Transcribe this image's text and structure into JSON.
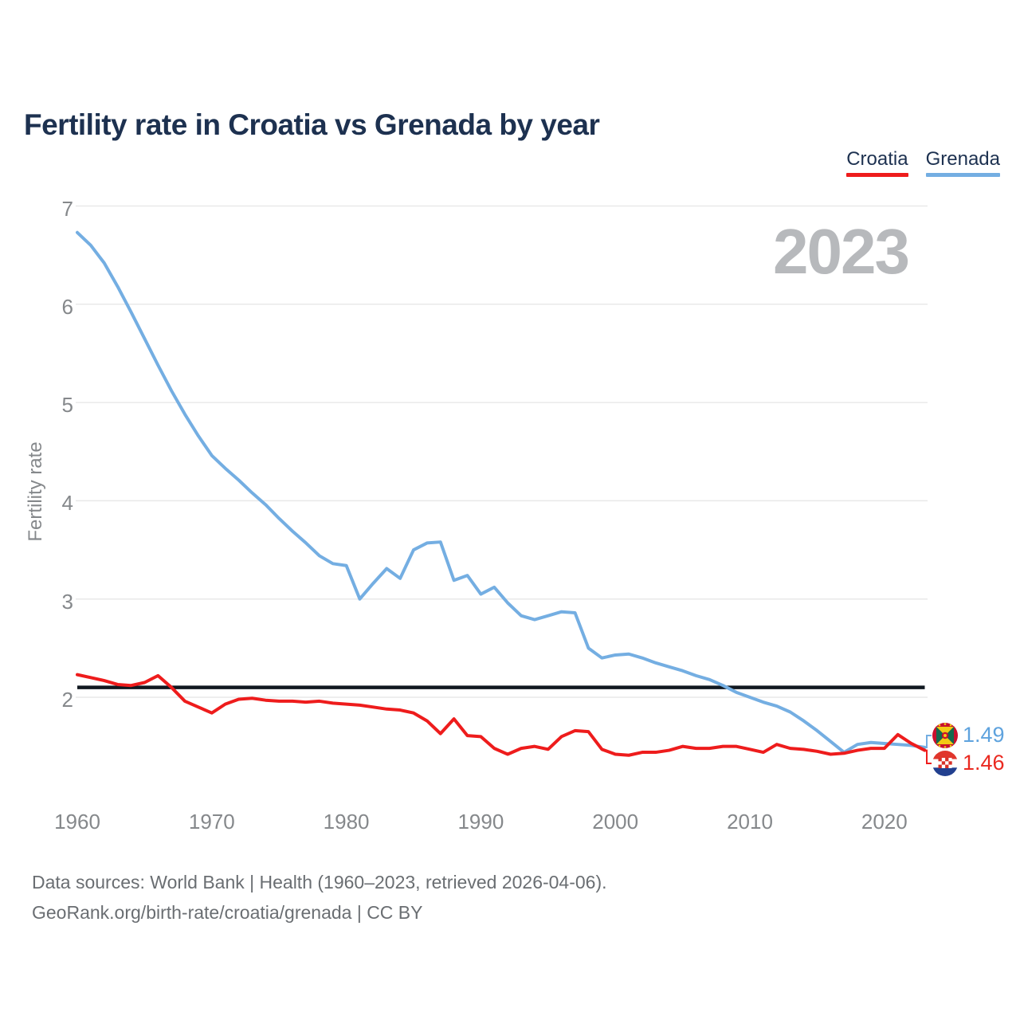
{
  "header": {
    "title": "Fertility rate in Croatia vs Grenada by year"
  },
  "legend": {
    "croatia": {
      "label": "Croatia",
      "color": "#ee1c1c"
    },
    "grenada": {
      "label": "Grenada",
      "color": "#74aee2"
    }
  },
  "watermark": "2023",
  "axes": {
    "y_label": "Fertility rate"
  },
  "end_labels": {
    "grenada": {
      "value": "1.49",
      "color": "#5fa3de"
    },
    "croatia": {
      "value": "1.46",
      "color": "#ea2a21"
    }
  },
  "footer": {
    "line1": "Data sources: World Bank | Health (1960–2023, retrieved 2026-04-06).",
    "line2": "GeoRank.org/birth-rate/croatia/grenada | CC BY"
  },
  "colors": {
    "title_text": "#1d3150",
    "axis_text": "#85888b",
    "footer_text": "#6a6e72",
    "gridline": "#e9e9e9",
    "watermark": "#b7b9bc",
    "reference_line": "#101820",
    "croatia_line": "#ee1c1c",
    "grenada_line": "#74aee2"
  },
  "chart_data": {
    "type": "line",
    "title": "Fertility rate in Croatia vs Grenada by year",
    "xlabel": "",
    "ylabel": "Fertility rate",
    "grid": "horizontal",
    "legend_position": "top-right",
    "ylim": [
      1.3,
      7.15
    ],
    "y_ticks": [
      7,
      6,
      5,
      4,
      3,
      2
    ],
    "x_ticks": [
      1960,
      1970,
      1980,
      1990,
      2000,
      2010,
      2020
    ],
    "reference_line": {
      "value": 2.1
    },
    "x": [
      1960,
      1961,
      1962,
      1963,
      1964,
      1965,
      1966,
      1967,
      1968,
      1969,
      1970,
      1971,
      1972,
      1973,
      1974,
      1975,
      1976,
      1977,
      1978,
      1979,
      1980,
      1981,
      1982,
      1983,
      1984,
      1985,
      1986,
      1987,
      1988,
      1989,
      1990,
      1991,
      1992,
      1993,
      1994,
      1995,
      1996,
      1997,
      1998,
      1999,
      2000,
      2001,
      2002,
      2003,
      2004,
      2005,
      2006,
      2007,
      2008,
      2009,
      2010,
      2011,
      2012,
      2013,
      2014,
      2015,
      2016,
      2017,
      2018,
      2019,
      2020,
      2021,
      2022,
      2023
    ],
    "series": [
      {
        "name": "Croatia",
        "color": "#ee1c1c",
        "final_value": 1.46,
        "values": [
          2.23,
          2.2,
          2.17,
          2.13,
          2.12,
          2.15,
          2.22,
          2.1,
          1.96,
          1.9,
          1.84,
          1.93,
          1.98,
          1.99,
          1.97,
          1.96,
          1.96,
          1.95,
          1.96,
          1.94,
          1.93,
          1.92,
          1.9,
          1.88,
          1.87,
          1.84,
          1.76,
          1.63,
          1.78,
          1.61,
          1.6,
          1.48,
          1.42,
          1.48,
          1.5,
          1.47,
          1.6,
          1.66,
          1.65,
          1.47,
          1.42,
          1.41,
          1.44,
          1.44,
          1.46,
          1.5,
          1.48,
          1.48,
          1.5,
          1.5,
          1.47,
          1.44,
          1.52,
          1.48,
          1.47,
          1.45,
          1.42,
          1.43,
          1.46,
          1.48,
          1.48,
          1.62,
          1.53,
          1.46
        ]
      },
      {
        "name": "Grenada",
        "color": "#74aee2",
        "final_value": 1.49,
        "values": [
          6.73,
          6.6,
          6.42,
          6.18,
          5.92,
          5.65,
          5.38,
          5.12,
          4.88,
          4.66,
          4.46,
          4.33,
          4.21,
          4.08,
          3.96,
          3.82,
          3.69,
          3.57,
          3.44,
          3.36,
          3.34,
          3.0,
          3.16,
          3.31,
          3.21,
          3.5,
          3.57,
          3.58,
          3.19,
          3.24,
          3.05,
          3.12,
          2.96,
          2.83,
          2.79,
          2.83,
          2.87,
          2.86,
          2.5,
          2.4,
          2.43,
          2.44,
          2.4,
          2.35,
          2.31,
          2.27,
          2.22,
          2.18,
          2.12,
          2.05,
          2.0,
          1.95,
          1.91,
          1.85,
          1.76,
          1.66,
          1.55,
          1.44,
          1.52,
          1.54,
          1.53,
          1.52,
          1.51,
          1.49
        ]
      }
    ]
  }
}
